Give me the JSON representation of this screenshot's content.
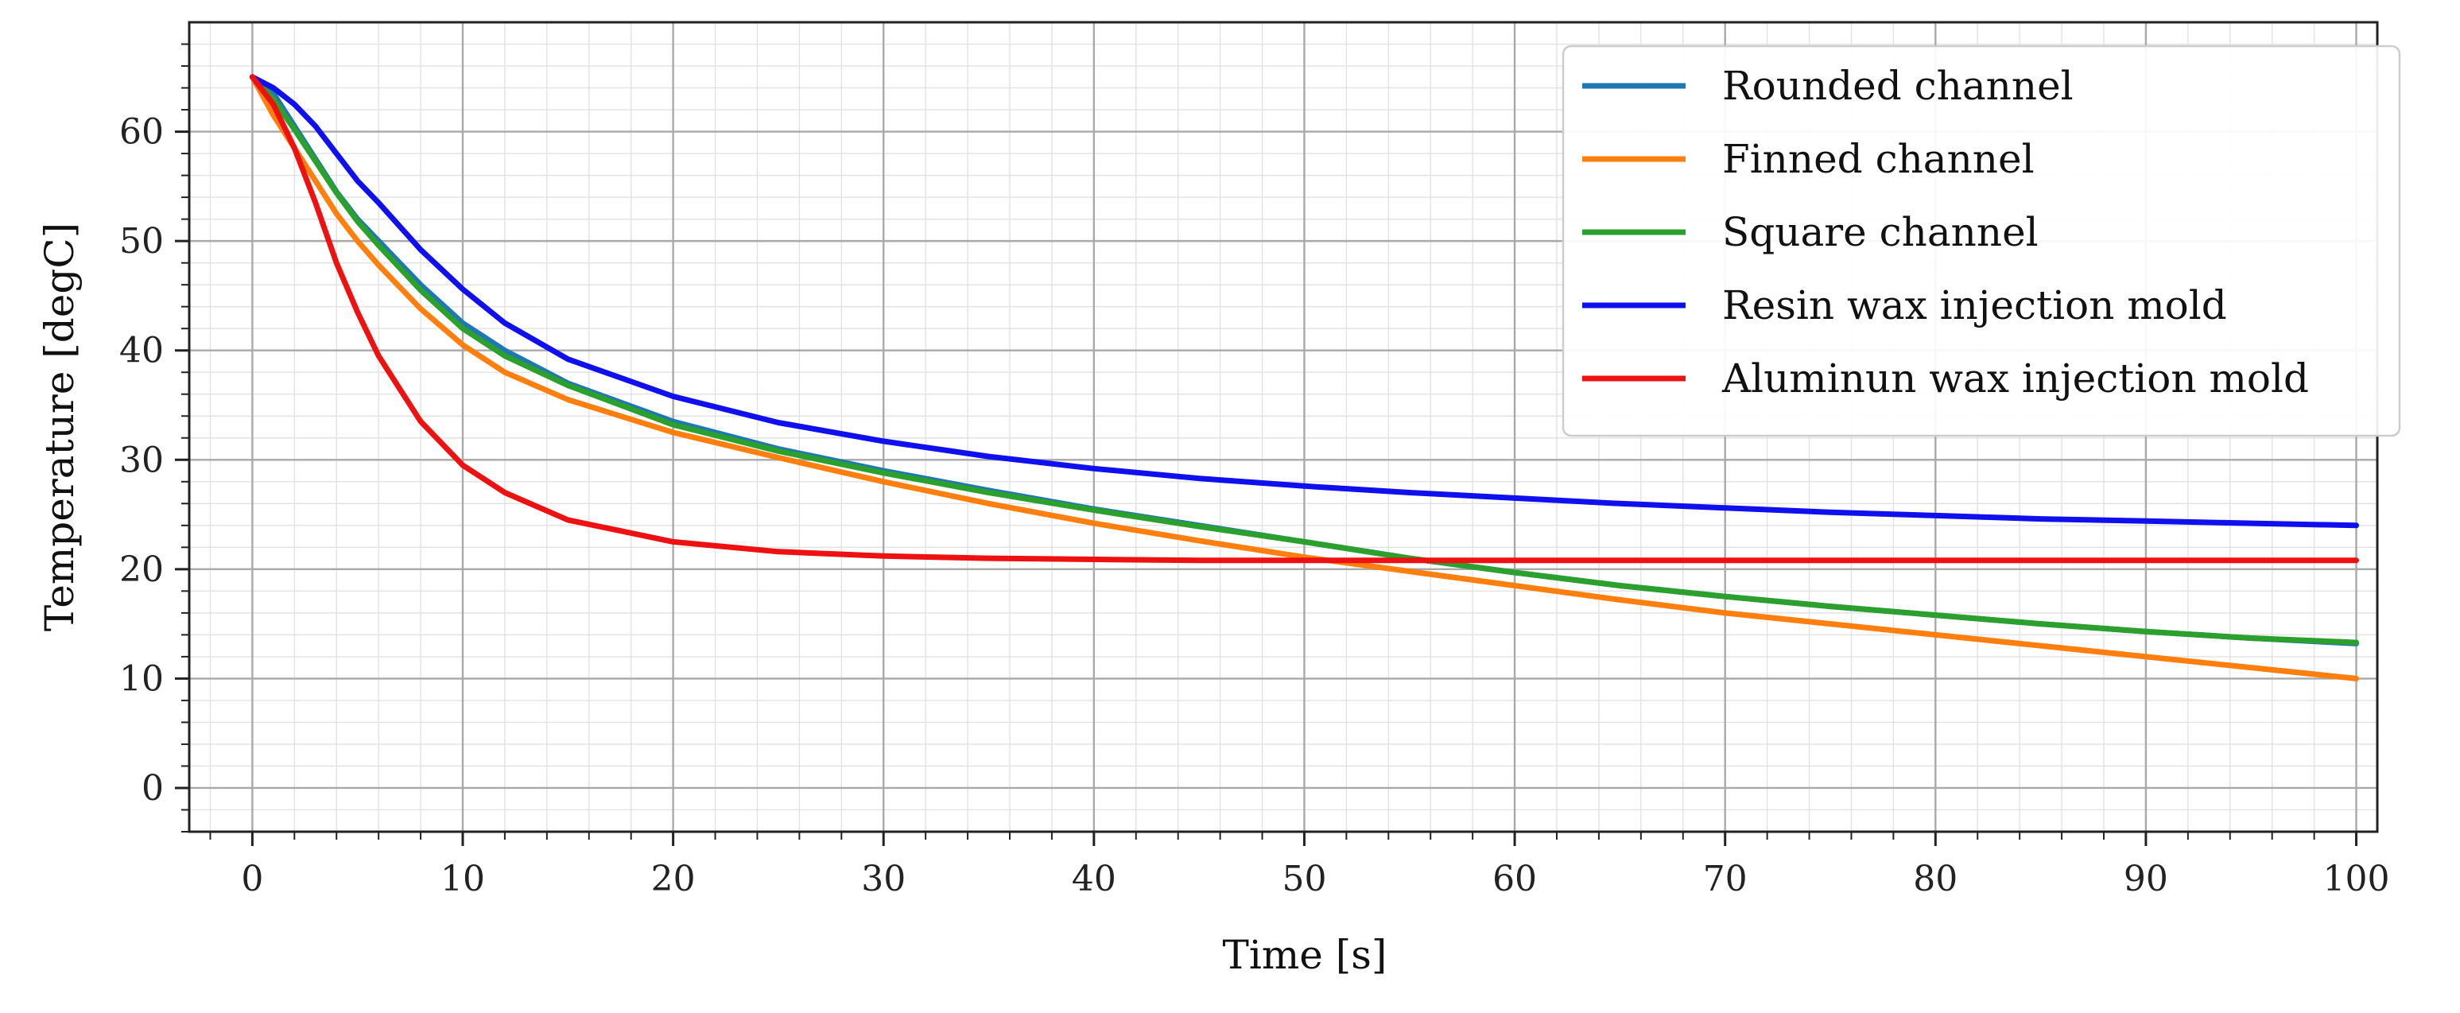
{
  "chart_data": {
    "type": "line",
    "title": "",
    "xlabel": "Time [s]",
    "ylabel": "Temperature [degC]",
    "xlim": [
      -3,
      101
    ],
    "ylim": [
      -4,
      70
    ],
    "x_ticks": [
      0,
      10,
      20,
      30,
      40,
      50,
      60,
      70,
      80,
      90,
      100
    ],
    "y_ticks": [
      0,
      10,
      20,
      30,
      40,
      50,
      60
    ],
    "grid": "major and minor",
    "legend_position": "top-right",
    "x": [
      0,
      1,
      2,
      3,
      4,
      5,
      6,
      8,
      10,
      12,
      15,
      20,
      25,
      30,
      35,
      40,
      45,
      50,
      55,
      60,
      65,
      70,
      75,
      80,
      85,
      90,
      95,
      100
    ],
    "series": [
      {
        "name": "Rounded channel",
        "color": "#1f77b4",
        "values": [
          65.0,
          63.5,
          60.5,
          57.5,
          54.5,
          52.0,
          50.0,
          46.0,
          42.5,
          40.0,
          37.0,
          33.5,
          31.0,
          29.0,
          27.2,
          25.5,
          24.0,
          22.5,
          21.0,
          19.7,
          18.5,
          17.5,
          16.6,
          15.8,
          15.0,
          14.3,
          13.7,
          13.2
        ]
      },
      {
        "name": "Finned channel",
        "color": "#ff7f0e",
        "values": [
          65.0,
          61.5,
          58.5,
          55.5,
          52.5,
          50.0,
          47.8,
          43.8,
          40.5,
          38.0,
          35.5,
          32.5,
          30.2,
          28.0,
          26.0,
          24.2,
          22.6,
          21.1,
          19.8,
          18.5,
          17.2,
          16.0,
          15.0,
          14.0,
          13.0,
          12.0,
          11.0,
          10.0
        ]
      },
      {
        "name": "Square channel",
        "color": "#2ca02c",
        "values": [
          65.0,
          63.0,
          60.2,
          57.3,
          54.4,
          51.8,
          49.6,
          45.5,
          42.0,
          39.5,
          36.8,
          33.2,
          30.8,
          28.8,
          27.0,
          25.4,
          23.9,
          22.5,
          21.0,
          19.7,
          18.5,
          17.5,
          16.6,
          15.8,
          15.0,
          14.3,
          13.7,
          13.3
        ]
      },
      {
        "name": "Resin wax injection mold",
        "color": "#1010ee",
        "values": [
          65.0,
          64.0,
          62.5,
          60.5,
          58.0,
          55.5,
          53.5,
          49.2,
          45.6,
          42.5,
          39.2,
          35.8,
          33.4,
          31.7,
          30.3,
          29.2,
          28.3,
          27.6,
          27.0,
          26.5,
          26.0,
          25.6,
          25.2,
          24.9,
          24.6,
          24.4,
          24.2,
          24.0
        ]
      },
      {
        "name": "Aluminun wax injection mold",
        "color": "#ee1111",
        "values": [
          65.0,
          62.5,
          58.5,
          53.5,
          48.0,
          43.5,
          39.5,
          33.5,
          29.5,
          27.0,
          24.5,
          22.5,
          21.6,
          21.2,
          21.0,
          20.9,
          20.8,
          20.8,
          20.8,
          20.8,
          20.8,
          20.8,
          20.8,
          20.8,
          20.8,
          20.8,
          20.8,
          20.8
        ]
      }
    ]
  }
}
